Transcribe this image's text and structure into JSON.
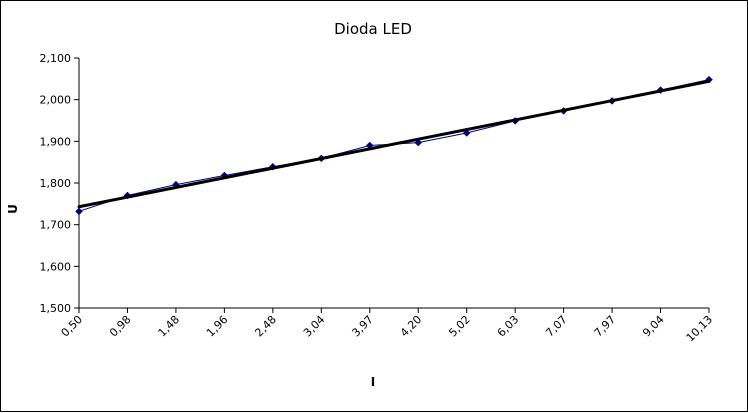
{
  "chart_data": {
    "type": "line",
    "title": "Dioda LED",
    "xlabel": "I",
    "ylabel": "U",
    "categories": [
      "0,50",
      "0,98",
      "1,48",
      "1,96",
      "2,48",
      "3,04",
      "3,97",
      "4,20",
      "5,02",
      "6,03",
      "7,07",
      "7,97",
      "9,04",
      "10,13"
    ],
    "ylim": [
      1.5,
      2.1
    ],
    "yticks": [
      "1,500",
      "1,600",
      "1,700",
      "1,800",
      "1,900",
      "2,000",
      "2,100"
    ],
    "series": [
      {
        "values": [
          1.732,
          1.77,
          1.796,
          1.818,
          1.839,
          1.859,
          1.89,
          1.897,
          1.92,
          1.949,
          1.973,
          1.997,
          2.023,
          2.048
        ],
        "color": "#00007f",
        "marker": "diamond"
      }
    ],
    "trendline": {
      "type": "linear",
      "values": [
        1.743,
        2.044
      ],
      "color": "#000000"
    },
    "grid": false,
    "legend": "none"
  }
}
